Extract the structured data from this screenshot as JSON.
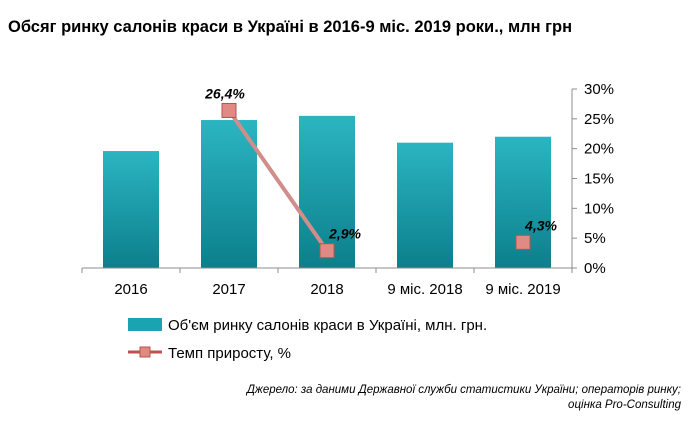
{
  "chart_data": {
    "type": "bar",
    "title": "Обсяг ринку салонів краси в Україні в 2016-9 міс. 2019 роки., млн грн",
    "categories": [
      "2016",
      "2017",
      "2018",
      "9 міс. 2018",
      "9 міс. 2019"
    ],
    "series": [
      {
        "name": "Об'єм ринку салонів краси в Україні, млн. грн.",
        "type": "bar",
        "color": "#1aa3b0",
        "values": [
          19.6,
          24.8,
          25.5,
          21.0,
          22.0
        ]
      },
      {
        "name": "Темп приросту, %",
        "type": "line",
        "color": "#d08e8a",
        "axis": "right",
        "values": [
          null,
          26.4,
          2.9,
          null,
          4.3
        ],
        "labels": [
          "",
          "26,4%",
          "2,9%",
          "",
          "4,3%"
        ]
      }
    ],
    "y2_ticks": [
      "0%",
      "5%",
      "10%",
      "15%",
      "20%",
      "25%",
      "30%"
    ],
    "y2lim": [
      0,
      30
    ],
    "grid": false,
    "legend": "bottom",
    "source_lines": [
      "Джерело: за даними Державної служби статистики України; операторів ринку;",
      "оцінка Pro-Consulting"
    ]
  }
}
